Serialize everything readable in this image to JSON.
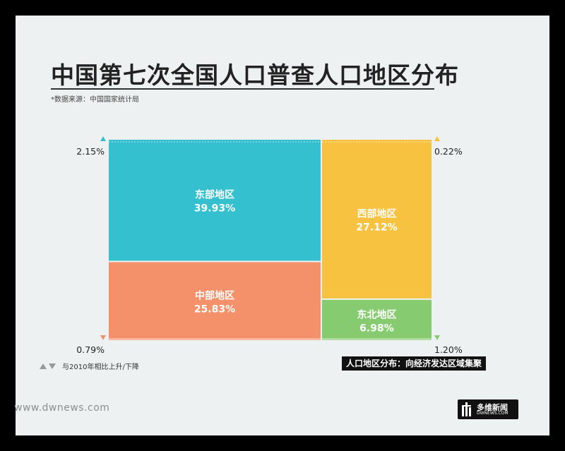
{
  "title": "中国第七次全国人口普查人口地区分布",
  "source": "*数据来源：中国国家统计局",
  "legend_text": "与2010年相比上升/下降",
  "tagline": "人口地区分布：向经济发达区域集聚",
  "website": "www.dwnews.com",
  "logo": {
    "name": "多维新闻",
    "sub": "DWNEWS.COM"
  },
  "colors": {
    "east": "#35c0cf",
    "central": "#f5916a",
    "west": "#f7c23f",
    "northeast": "#87cb70",
    "up_east": "#35c0cf",
    "up_west": "#f7c23f",
    "down_central": "#f5916a",
    "down_northeast": "#87cb70"
  },
  "chart_data": {
    "type": "treemap",
    "unit": "%",
    "regions": [
      {
        "name": "东部地区",
        "share": 39.93,
        "share_label": "39.93%",
        "change": 2.15,
        "change_label": "2.15%",
        "direction": "up"
      },
      {
        "name": "中部地区",
        "share": 25.83,
        "share_label": "25.83%",
        "change": -0.79,
        "change_label": "0.79%",
        "direction": "down"
      },
      {
        "name": "西部地区",
        "share": 27.12,
        "share_label": "27.12%",
        "change": 0.22,
        "change_label": "0.22%",
        "direction": "up"
      },
      {
        "name": "东北地区",
        "share": 6.98,
        "share_label": "6.98%",
        "change": -1.2,
        "change_label": "1.20%",
        "direction": "down"
      }
    ]
  }
}
